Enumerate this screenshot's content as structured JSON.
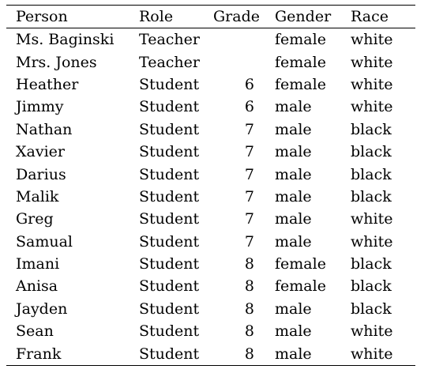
{
  "table": {
    "headers": {
      "person": "Person",
      "role": "Role",
      "grade": "Grade",
      "gender": "Gender",
      "race": "Race"
    },
    "rows": [
      {
        "person": "Ms. Baginski",
        "role": "Teacher",
        "grade": "",
        "gender": "female",
        "race": "white"
      },
      {
        "person": "Mrs. Jones",
        "role": "Teacher",
        "grade": "",
        "gender": "female",
        "race": "white"
      },
      {
        "person": "Heather",
        "role": "Student",
        "grade": "6",
        "gender": "female",
        "race": "white"
      },
      {
        "person": "Jimmy",
        "role": "Student",
        "grade": "6",
        "gender": "male",
        "race": "white"
      },
      {
        "person": "Nathan",
        "role": "Student",
        "grade": "7",
        "gender": "male",
        "race": "black"
      },
      {
        "person": "Xavier",
        "role": "Student",
        "grade": "7",
        "gender": "male",
        "race": "black"
      },
      {
        "person": "Darius",
        "role": "Student",
        "grade": "7",
        "gender": "male",
        "race": "black"
      },
      {
        "person": "Malik",
        "role": "Student",
        "grade": "7",
        "gender": "male",
        "race": "black"
      },
      {
        "person": "Greg",
        "role": "Student",
        "grade": "7",
        "gender": "male",
        "race": "white"
      },
      {
        "person": "Samual",
        "role": "Student",
        "grade": "7",
        "gender": "male",
        "race": "white"
      },
      {
        "person": "Imani",
        "role": "Student",
        "grade": "8",
        "gender": "female",
        "race": "black"
      },
      {
        "person": "Anisa",
        "role": "Student",
        "grade": "8",
        "gender": "female",
        "race": "black"
      },
      {
        "person": "Jayden",
        "role": "Student",
        "grade": "8",
        "gender": "male",
        "race": "black"
      },
      {
        "person": "Sean",
        "role": "Student",
        "grade": "8",
        "gender": "male",
        "race": "white"
      },
      {
        "person": "Frank",
        "role": "Student",
        "grade": "8",
        "gender": "male",
        "race": "white"
      }
    ]
  }
}
